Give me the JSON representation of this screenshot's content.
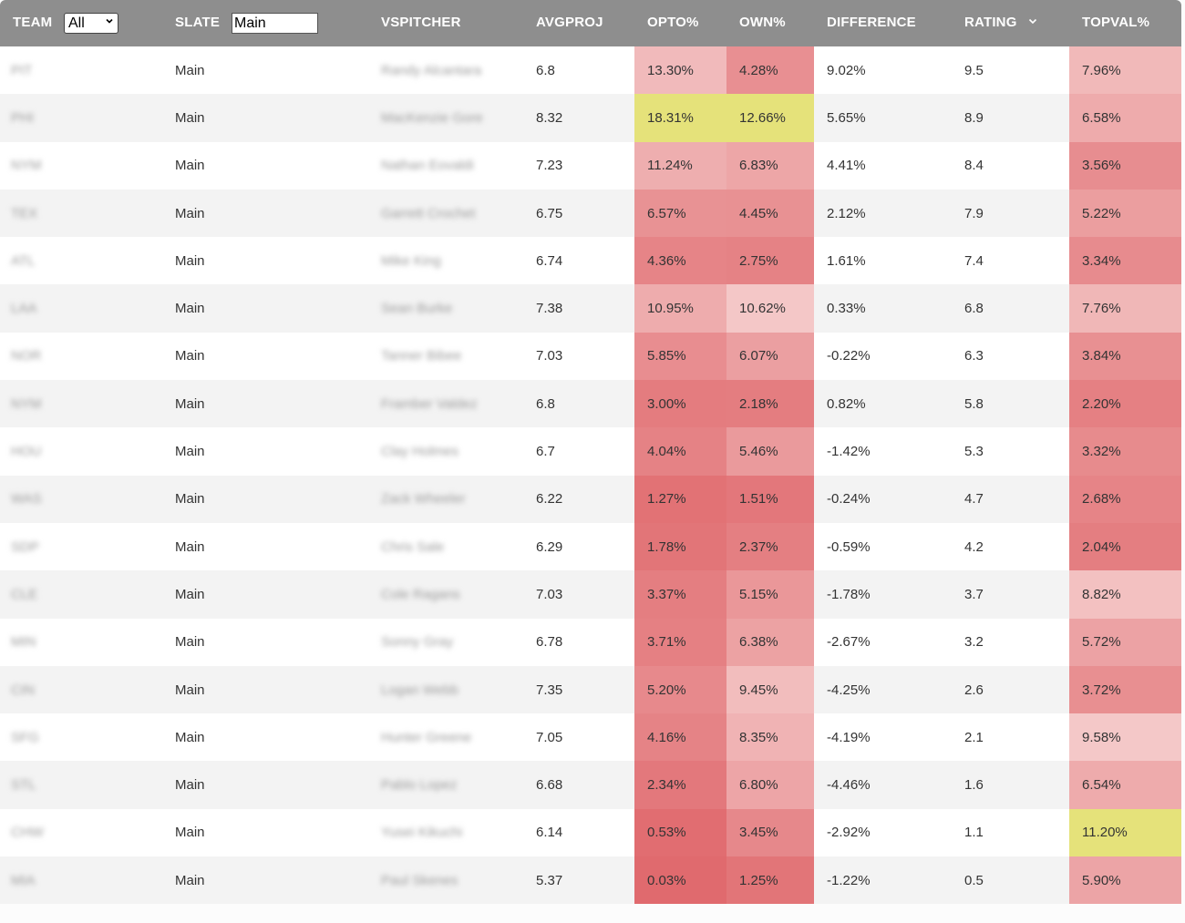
{
  "header": {
    "team_label": "TEAM",
    "team_filter_value": "All",
    "slate_label": "SLATE",
    "slate_filter_value": "Main",
    "vspitcher_label": "VSPITCHER",
    "avgproj_label": "AVGPROJ",
    "opto_label": "OPTO%",
    "own_label": "OWN%",
    "difference_label": "DIFFERENCE",
    "rating_label": "RATING",
    "topval_label": "TOPVAL%"
  },
  "colors": {
    "header_bg": "#8e8e8e",
    "highlight_yellow": "#e5e27a",
    "heat_low": "#e06a6e",
    "heat_high": "#f4c8c8"
  },
  "rows": [
    {
      "team": "PIT",
      "slate": "Main",
      "vspitcher": "Randy Alcantara",
      "avgproj": "6.8",
      "opto": "13.30%",
      "own": "4.28%",
      "difference": "9.02%",
      "rating": "9.5",
      "topval": "7.96%"
    },
    {
      "team": "PHI",
      "slate": "Main",
      "vspitcher": "MacKenzie Gore",
      "avgproj": "8.32",
      "opto": "18.31%",
      "own": "12.66%",
      "difference": "5.65%",
      "rating": "8.9",
      "topval": "6.58%"
    },
    {
      "team": "NYM",
      "slate": "Main",
      "vspitcher": "Nathan Eovaldi",
      "avgproj": "7.23",
      "opto": "11.24%",
      "own": "6.83%",
      "difference": "4.41%",
      "rating": "8.4",
      "topval": "3.56%"
    },
    {
      "team": "TEX",
      "slate": "Main",
      "vspitcher": "Garrett Crochet",
      "avgproj": "6.75",
      "opto": "6.57%",
      "own": "4.45%",
      "difference": "2.12%",
      "rating": "7.9",
      "topval": "5.22%"
    },
    {
      "team": "ATL",
      "slate": "Main",
      "vspitcher": "Mike King",
      "avgproj": "6.74",
      "opto": "4.36%",
      "own": "2.75%",
      "difference": "1.61%",
      "rating": "7.4",
      "topval": "3.34%"
    },
    {
      "team": "LAA",
      "slate": "Main",
      "vspitcher": "Sean Burke",
      "avgproj": "7.38",
      "opto": "10.95%",
      "own": "10.62%",
      "difference": "0.33%",
      "rating": "6.8",
      "topval": "7.76%"
    },
    {
      "team": "NOR",
      "slate": "Main",
      "vspitcher": "Tanner Bibee",
      "avgproj": "7.03",
      "opto": "5.85%",
      "own": "6.07%",
      "difference": "-0.22%",
      "rating": "6.3",
      "topval": "3.84%"
    },
    {
      "team": "NYM",
      "slate": "Main",
      "vspitcher": "Framber Valdez",
      "avgproj": "6.8",
      "opto": "3.00%",
      "own": "2.18%",
      "difference": "0.82%",
      "rating": "5.8",
      "topval": "2.20%"
    },
    {
      "team": "HOU",
      "slate": "Main",
      "vspitcher": "Clay Holmes",
      "avgproj": "6.7",
      "opto": "4.04%",
      "own": "5.46%",
      "difference": "-1.42%",
      "rating": "5.3",
      "topval": "3.32%"
    },
    {
      "team": "WAS",
      "slate": "Main",
      "vspitcher": "Zack Wheeler",
      "avgproj": "6.22",
      "opto": "1.27%",
      "own": "1.51%",
      "difference": "-0.24%",
      "rating": "4.7",
      "topval": "2.68%"
    },
    {
      "team": "SDP",
      "slate": "Main",
      "vspitcher": "Chris Sale",
      "avgproj": "6.29",
      "opto": "1.78%",
      "own": "2.37%",
      "difference": "-0.59%",
      "rating": "4.2",
      "topval": "2.04%"
    },
    {
      "team": "CLE",
      "slate": "Main",
      "vspitcher": "Cole Ragans",
      "avgproj": "7.03",
      "opto": "3.37%",
      "own": "5.15%",
      "difference": "-1.78%",
      "rating": "3.7",
      "topval": "8.82%"
    },
    {
      "team": "MIN",
      "slate": "Main",
      "vspitcher": "Sonny Gray",
      "avgproj": "6.78",
      "opto": "3.71%",
      "own": "6.38%",
      "difference": "-2.67%",
      "rating": "3.2",
      "topval": "5.72%"
    },
    {
      "team": "CIN",
      "slate": "Main",
      "vspitcher": "Logan Webb",
      "avgproj": "7.35",
      "opto": "5.20%",
      "own": "9.45%",
      "difference": "-4.25%",
      "rating": "2.6",
      "topval": "3.72%"
    },
    {
      "team": "SFG",
      "slate": "Main",
      "vspitcher": "Hunter Greene",
      "avgproj": "7.05",
      "opto": "4.16%",
      "own": "8.35%",
      "difference": "-4.19%",
      "rating": "2.1",
      "topval": "9.58%"
    },
    {
      "team": "STL",
      "slate": "Main",
      "vspitcher": "Pablo Lopez",
      "avgproj": "6.68",
      "opto": "2.34%",
      "own": "6.80%",
      "difference": "-4.46%",
      "rating": "1.6",
      "topval": "6.54%"
    },
    {
      "team": "CHW",
      "slate": "Main",
      "vspitcher": "Yusei Kikuchi",
      "avgproj": "6.14",
      "opto": "0.53%",
      "own": "3.45%",
      "difference": "-2.92%",
      "rating": "1.1",
      "topval": "11.20%"
    },
    {
      "team": "MIA",
      "slate": "Main",
      "vspitcher": "Paul Skenes",
      "avgproj": "5.37",
      "opto": "0.03%",
      "own": "1.25%",
      "difference": "-1.22%",
      "rating": "0.5",
      "topval": "5.90%"
    }
  ]
}
